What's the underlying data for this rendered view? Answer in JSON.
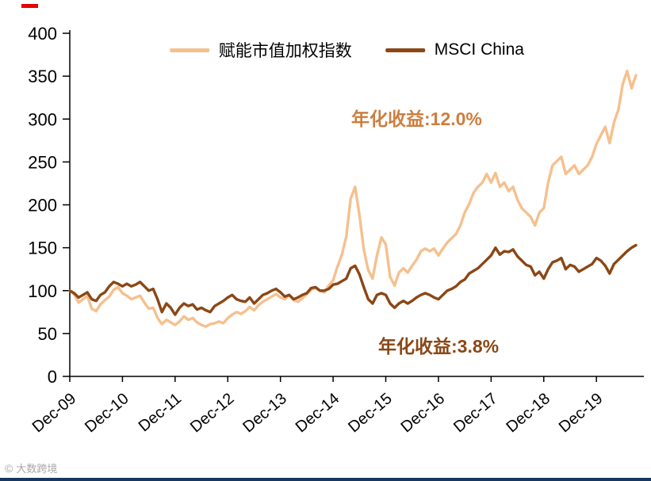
{
  "brand": {
    "top_mark_color": "#e60000",
    "bottom_bar_color": "#17375e"
  },
  "watermark": {
    "icon": "©",
    "text": "大数跨境"
  },
  "legend": [
    {
      "label": "赋能市值加权指数",
      "color": "#f5c08e"
    },
    {
      "label": "MSCI China",
      "color": "#8b4715"
    }
  ],
  "annotations": [
    {
      "text": "年化收益:12.0%",
      "color": "#cd7e3f"
    },
    {
      "text": "年化收益:3.8%",
      "color": "#8b4715"
    }
  ],
  "chart_data": {
    "type": "line",
    "title": "",
    "xlabel": "",
    "ylabel": "",
    "ylim": [
      0,
      400
    ],
    "y_ticks": [
      0,
      50,
      100,
      150,
      200,
      250,
      300,
      350,
      400
    ],
    "x_tick_labels": [
      "Dec-09",
      "Dec-10",
      "Dec-11",
      "Dec-12",
      "Dec-13",
      "Dec-14",
      "Dec-15",
      "Dec-16",
      "Dec-17",
      "Dec-18",
      "Dec-19"
    ],
    "x_unit": "months since Dec-09",
    "legend_position": "top",
    "grid": false,
    "series": [
      {
        "name": "赋能市值加权指数",
        "color": "#f5c08e",
        "values": [
          100,
          96,
          86,
          90,
          94,
          79,
          76,
          84,
          89,
          93,
          101,
          104,
          97,
          94,
          90,
          92,
          94,
          86,
          79,
          80,
          68,
          61,
          66,
          63,
          60,
          64,
          70,
          66,
          68,
          63,
          60,
          58,
          61,
          62,
          64,
          62,
          68,
          72,
          75,
          73,
          76,
          81,
          77,
          83,
          87,
          90,
          93,
          96,
          92,
          90,
          95,
          89,
          87,
          91,
          96,
          101,
          103,
          100,
          98,
          106,
          112,
          128,
          142,
          163,
          207,
          221,
          188,
          148,
          124,
          114,
          141,
          162,
          154,
          116,
          106,
          121,
          126,
          121,
          129,
          136,
          146,
          149,
          146,
          149,
          141,
          149,
          156,
          161,
          166,
          176,
          191,
          201,
          214,
          221,
          226,
          236,
          226,
          237,
          221,
          226,
          216,
          221,
          206,
          196,
          191,
          186,
          176,
          191,
          196,
          226,
          246,
          251,
          256,
          236,
          241,
          246,
          236,
          241,
          246,
          256,
          271,
          281,
          291,
          272,
          296,
          311,
          341,
          356,
          336,
          351
        ]
      },
      {
        "name": "MSCI China",
        "color": "#8b4715",
        "values": [
          100,
          97,
          92,
          95,
          98,
          90,
          88,
          95,
          98,
          105,
          110,
          108,
          105,
          108,
          105,
          107,
          110,
          105,
          100,
          102,
          90,
          75,
          85,
          80,
          72,
          80,
          85,
          82,
          84,
          78,
          80,
          77,
          75,
          82,
          85,
          88,
          92,
          95,
          90,
          88,
          87,
          92,
          85,
          90,
          95,
          97,
          100,
          102,
          98,
          93,
          95,
          90,
          92,
          95,
          97,
          103,
          104,
          100,
          100,
          102,
          107,
          108,
          111,
          114,
          126,
          129,
          119,
          104,
          90,
          85,
          95,
          97,
          95,
          85,
          80,
          85,
          88,
          85,
          88,
          92,
          95,
          97,
          95,
          92,
          90,
          95,
          100,
          102,
          105,
          110,
          113,
          120,
          123,
          126,
          131,
          136,
          141,
          150,
          142,
          146,
          145,
          148,
          140,
          135,
          130,
          128,
          118,
          122,
          114,
          125,
          133,
          135,
          138,
          125,
          130,
          128,
          122,
          125,
          128,
          131,
          138,
          135,
          129,
          120,
          131,
          136,
          141,
          146,
          150,
          153
        ]
      }
    ]
  }
}
